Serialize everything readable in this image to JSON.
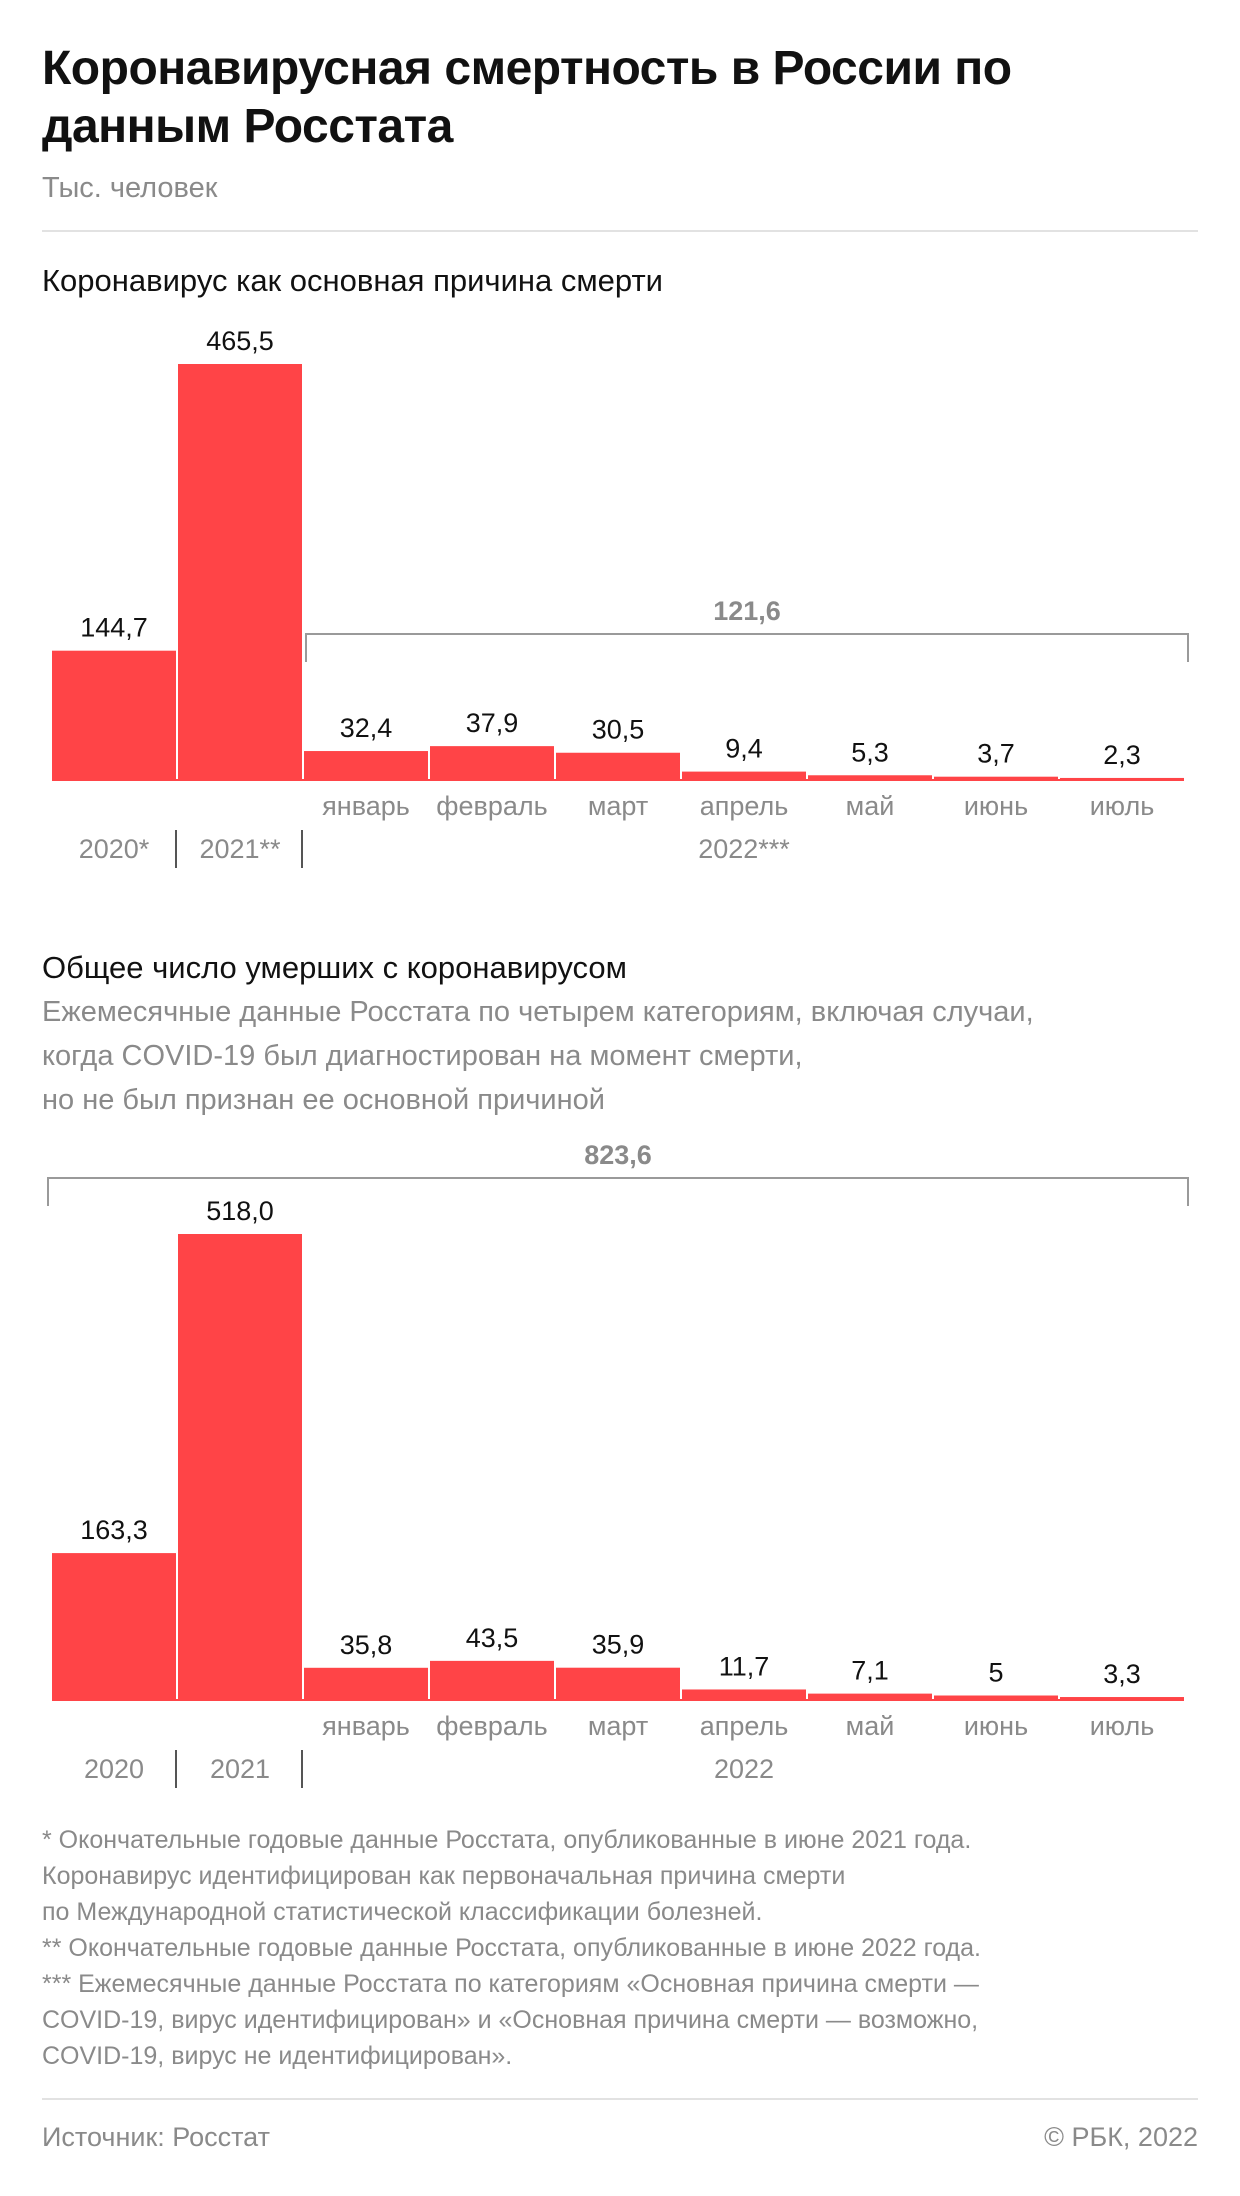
{
  "header": {
    "title": "Коронавирусная смертность в России по данным Росстата",
    "subtitle": "Тыс. человек"
  },
  "colors": {
    "bar": "#FF4447",
    "bracket": "#9a9a9a",
    "muted_text": "#8a8a8a"
  },
  "chart_data": [
    {
      "type": "bar",
      "title": "Коронавирус как основная причина смерти",
      "categories": [
        "2020*",
        "2021**",
        "январь",
        "февраль",
        "март",
        "апрель",
        "май",
        "июнь",
        "июль"
      ],
      "values": [
        144.7,
        465.5,
        32.4,
        37.9,
        30.5,
        9.4,
        5.3,
        3.7,
        2.3
      ],
      "value_labels": [
        "144,7",
        "465,5",
        "32,4",
        "37,9",
        "30,5",
        "9,4",
        "5,3",
        "3,7",
        "2,3"
      ],
      "month_labels": [
        "январь",
        "февраль",
        "март",
        "апрель",
        "май",
        "июнь",
        "июль"
      ],
      "year_labels": [
        "2020*",
        "2021**"
      ],
      "group_label": "2022***",
      "bracket_total": "121,6",
      "ylim": [
        0,
        465.5
      ]
    },
    {
      "type": "bar",
      "title": "Общее число умерших с коронавирусом",
      "description": [
        "Ежемесячные данные Росстата по четырем категориям, включая случаи,",
        "когда COVID-19 был диагностирован на момент смерти,",
        "но не был признан ее основной причиной"
      ],
      "categories": [
        "2020",
        "2021",
        "январь",
        "февраль",
        "март",
        "апрель",
        "май",
        "июнь",
        "июль"
      ],
      "values": [
        163.3,
        518.0,
        35.8,
        43.5,
        35.9,
        11.7,
        7.1,
        5,
        3.3
      ],
      "value_labels": [
        "163,3",
        "518,0",
        "35,8",
        "43,5",
        "35,9",
        "11,7",
        "7,1",
        "5",
        "3,3"
      ],
      "month_labels": [
        "январь",
        "февраль",
        "март",
        "апрель",
        "май",
        "июнь",
        "июль"
      ],
      "year_labels": [
        "2020",
        "2021"
      ],
      "group_label": "2022",
      "bracket_total": "823,6",
      "ylim": [
        0,
        518.0
      ]
    }
  ],
  "footnotes": [
    "* Окончательные годовые данные Росстата, опубликованные в июне 2021 года.",
    "Коронавирус идентифицирован как первоначальная причина смерти",
    "по Международной статистической классификации болезней.",
    "** Окончательные годовые данные Росстата, опубликованные в июне 2022 года.",
    "*** Ежемесячные данные Росстата по категориям «Основная причина смерти —",
    "COVID-19, вирус идентифицирован» и «Основная причина смерти — возможно,",
    "COVID-19, вирус не идентифицирован»."
  ],
  "footer": {
    "source": "Источник: Росстат",
    "copyright": "© РБК, 2022"
  }
}
